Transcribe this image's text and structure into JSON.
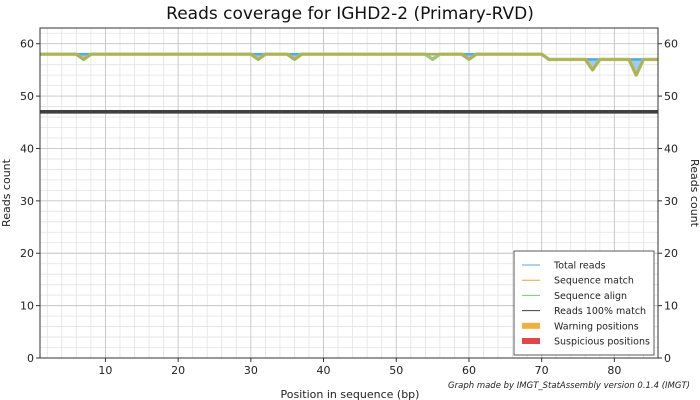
{
  "chart_data": {
    "type": "line",
    "title": "Reads coverage for IGHD2-2 (Primary-RVD)",
    "xlabel": "Position in sequence (bp)",
    "ylabel": "Reads count",
    "ylabel_right": "Reads count",
    "credit": "Graph made by IMGT_StatAssembly version 0.1.4 (IMGT)",
    "xlim": [
      1,
      86
    ],
    "ylim": [
      0,
      63
    ],
    "xticks": [
      "10",
      "20",
      "30",
      "40",
      "50",
      "60",
      "70",
      "80"
    ],
    "xtick_values": [
      10,
      20,
      30,
      40,
      50,
      60,
      70,
      80
    ],
    "yticks": [
      "0",
      "10",
      "20",
      "30",
      "40",
      "50",
      "60"
    ],
    "ytick_values": [
      0,
      10,
      20,
      30,
      40,
      50,
      60
    ],
    "grid": true,
    "legend_position": "bottom-right",
    "x": [
      1,
      2,
      3,
      4,
      5,
      6,
      7,
      8,
      9,
      10,
      11,
      12,
      13,
      14,
      15,
      16,
      17,
      18,
      19,
      20,
      21,
      22,
      23,
      24,
      25,
      26,
      27,
      28,
      29,
      30,
      31,
      32,
      33,
      34,
      35,
      36,
      37,
      38,
      39,
      40,
      41,
      42,
      43,
      44,
      45,
      46,
      47,
      48,
      49,
      50,
      51,
      52,
      53,
      54,
      55,
      56,
      57,
      58,
      59,
      60,
      61,
      62,
      63,
      64,
      65,
      66,
      67,
      68,
      69,
      70,
      71,
      72,
      73,
      74,
      75,
      76,
      77,
      78,
      79,
      80,
      81,
      82,
      83,
      84,
      85,
      86
    ],
    "series": [
      {
        "name": "Total reads",
        "color": "#5aaadc",
        "width": 1,
        "values": [
          58,
          58,
          58,
          58,
          58,
          58,
          58,
          58,
          58,
          58,
          58,
          58,
          58,
          58,
          58,
          58,
          58,
          58,
          58,
          58,
          58,
          58,
          58,
          58,
          58,
          58,
          58,
          58,
          58,
          58,
          58,
          58,
          58,
          58,
          58,
          58,
          58,
          58,
          58,
          58,
          58,
          58,
          58,
          58,
          58,
          58,
          58,
          58,
          58,
          58,
          58,
          58,
          58,
          58,
          58,
          58,
          58,
          58,
          58,
          58,
          58,
          58,
          58,
          58,
          58,
          58,
          58,
          58,
          58,
          58,
          57,
          57,
          57,
          57,
          57,
          57,
          57,
          57,
          57,
          57,
          57,
          57,
          57,
          57,
          57,
          57
        ]
      },
      {
        "name": "Sequence match",
        "color": "#f0a040",
        "width": 1,
        "values": [
          58,
          58,
          58,
          58,
          58,
          58,
          57,
          58,
          58,
          58,
          58,
          58,
          58,
          58,
          58,
          58,
          58,
          58,
          58,
          58,
          58,
          58,
          58,
          58,
          58,
          58,
          58,
          58,
          58,
          58,
          57,
          58,
          58,
          58,
          58,
          57,
          58,
          58,
          58,
          58,
          58,
          58,
          58,
          58,
          58,
          58,
          58,
          58,
          58,
          58,
          58,
          58,
          58,
          58,
          58,
          58,
          58,
          58,
          58,
          57,
          58,
          58,
          58,
          58,
          58,
          58,
          58,
          58,
          58,
          58,
          57,
          57,
          57,
          57,
          57,
          57,
          55,
          57,
          57,
          57,
          57,
          57,
          54,
          57,
          57,
          57
        ]
      },
      {
        "name": "Sequence align",
        "color": "#78c878",
        "width": 1,
        "values": [
          58,
          58,
          58,
          58,
          58,
          58,
          57,
          58,
          58,
          58,
          58,
          58,
          58,
          58,
          58,
          58,
          58,
          58,
          58,
          58,
          58,
          58,
          58,
          58,
          58,
          58,
          58,
          58,
          58,
          58,
          57,
          58,
          58,
          58,
          58,
          57,
          58,
          58,
          58,
          58,
          58,
          58,
          58,
          58,
          58,
          58,
          58,
          58,
          58,
          58,
          58,
          58,
          58,
          58,
          57,
          58,
          58,
          58,
          58,
          57,
          58,
          58,
          58,
          58,
          58,
          58,
          58,
          58,
          58,
          58,
          57,
          57,
          57,
          57,
          57,
          57,
          55,
          57,
          57,
          57,
          57,
          57,
          54,
          57,
          57,
          57
        ]
      },
      {
        "name": "Reads 100% match",
        "color": "#404040",
        "width": 1,
        "values": [
          47,
          47,
          47,
          47,
          47,
          47,
          47,
          47,
          47,
          47,
          47,
          47,
          47,
          47,
          47,
          47,
          47,
          47,
          47,
          47,
          47,
          47,
          47,
          47,
          47,
          47,
          47,
          47,
          47,
          47,
          47,
          47,
          47,
          47,
          47,
          47,
          47,
          47,
          47,
          47,
          47,
          47,
          47,
          47,
          47,
          47,
          47,
          47,
          47,
          47,
          47,
          47,
          47,
          47,
          47,
          47,
          47,
          47,
          47,
          47,
          47,
          47,
          47,
          47,
          47,
          47,
          47,
          47,
          47,
          47,
          47,
          47,
          47,
          47,
          47,
          47,
          47,
          47,
          47,
          47,
          47,
          47,
          47,
          47,
          47,
          47
        ]
      }
    ],
    "markers": [
      {
        "name": "Warning positions",
        "color": "#f0b040"
      },
      {
        "name": "Suspicious positions",
        "color": "#e04848"
      }
    ]
  }
}
